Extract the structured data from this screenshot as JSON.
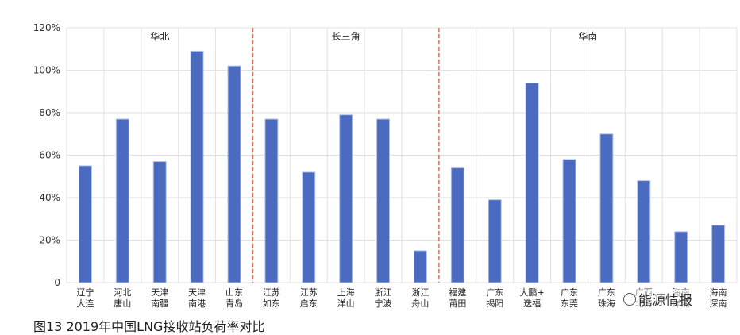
{
  "figure_caption": "图13    2019年中国LNG接收站负荷率对比",
  "watermark": "能源情报",
  "colors": {
    "bar": "#4a6bbf",
    "divider": "#e07050",
    "grid": "#e2e2e2"
  },
  "chart_data": {
    "type": "bar",
    "title": "",
    "xlabel": "",
    "ylabel": "",
    "ylim": [
      0,
      120
    ],
    "yticks": [
      "0",
      "20%",
      "40%",
      "60%",
      "80%",
      "100%",
      "120%"
    ],
    "grid": true,
    "legend": "none",
    "categories": [
      [
        "辽宁",
        "大连"
      ],
      [
        "河北",
        "唐山"
      ],
      [
        "天津",
        "南疆"
      ],
      [
        "天津",
        "南港"
      ],
      [
        "山东",
        "青岛"
      ],
      [
        "江苏",
        "如东"
      ],
      [
        "江苏",
        "启东"
      ],
      [
        "上海",
        "洋山"
      ],
      [
        "浙江",
        "宁波"
      ],
      [
        "浙江",
        "舟山"
      ],
      [
        "福建",
        "莆田"
      ],
      [
        "广东",
        "揭阳"
      ],
      [
        "大鹏+",
        "迭福"
      ],
      [
        "广东",
        "东莞"
      ],
      [
        "广东",
        "珠海"
      ],
      [
        "广西",
        "北海"
      ],
      [
        "海南",
        "洋浦"
      ],
      [
        "海南",
        "深南"
      ]
    ],
    "values": [
      55,
      77,
      57,
      109,
      102,
      77,
      52,
      79,
      77,
      15,
      54,
      39,
      94,
      58,
      70,
      48,
      24,
      27
    ],
    "groups": [
      {
        "label": "华北",
        "start": 0,
        "end": 4
      },
      {
        "label": "长三角",
        "start": 5,
        "end": 9
      },
      {
        "label": "华南",
        "start": 10,
        "end": 17
      }
    ]
  }
}
